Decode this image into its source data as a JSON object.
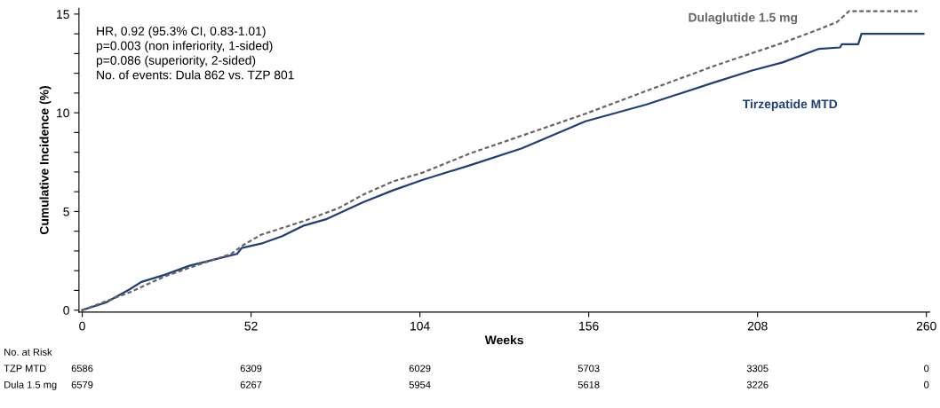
{
  "chart_data": {
    "type": "line",
    "ylabel": "Cumulative Incidence (%)",
    "xlabel": "Weeks",
    "xlim": [
      -1,
      261
    ],
    "xticks": [
      0,
      52,
      104,
      156,
      208,
      260
    ],
    "ylim": [
      -0.1,
      15.3
    ],
    "yticks": [
      0,
      {
        "value": 1,
        "label": null
      },
      {
        "value": 2,
        "label": null
      },
      {
        "value": 3,
        "label": null
      },
      {
        "value": 4,
        "label": null
      },
      5,
      {
        "value": 6,
        "label": null
      },
      {
        "value": 7,
        "label": null
      },
      {
        "value": 8,
        "label": null
      },
      {
        "value": 9,
        "label": null
      },
      10,
      {
        "value": 11,
        "label": null
      },
      {
        "value": 12,
        "label": null
      },
      {
        "value": 13,
        "label": null
      },
      {
        "value": 14,
        "label": null
      },
      15
    ],
    "grid": false,
    "legend": false,
    "series": [
      {
        "name": "Tirzepatide MTD",
        "color": "#1f3f7a",
        "line_style": "solid",
        "x": [
          0,
          7.2,
          14.6,
          18.2,
          25.6,
          33,
          40.4,
          47.7,
          49.1,
          55.1,
          61.6,
          68,
          75.4,
          86.5,
          95.7,
          104.9,
          119.6,
          135.4,
          155,
          173.6,
          195.1,
          206.3,
          215.7,
          226.9,
          233.4,
          233.9,
          239,
          240,
          259.1
        ],
        "values": [
          0,
          0.38,
          1.05,
          1.43,
          1.8,
          2.25,
          2.55,
          2.85,
          3.15,
          3.37,
          3.75,
          4.27,
          4.62,
          5.47,
          6.07,
          6.6,
          7.35,
          8.2,
          9.57,
          10.41,
          11.56,
          12.14,
          12.55,
          13.24,
          13.31,
          13.47,
          13.47,
          14.0,
          14.0
        ]
      },
      {
        "name": "Dulaglutide 1.5 mg",
        "color": "#666666",
        "line_style": "dashed",
        "x": [
          0,
          14.6,
          25.6,
          34.8,
          45.9,
          49.6,
          55.1,
          68,
          79,
          86.5,
          95.7,
          104.9,
          119.6,
          136.3,
          155,
          173.6,
          195.1,
          215.7,
          226.9,
          232.5,
          236.2,
          257.2
        ],
        "values": [
          0,
          0.9,
          1.72,
          2.25,
          2.85,
          3.3,
          3.82,
          4.5,
          5.17,
          5.85,
          6.52,
          6.97,
          7.95,
          8.89,
          9.95,
          11.1,
          12.4,
          13.54,
          14.23,
          14.6,
          15.15,
          15.15
        ]
      }
    ],
    "annotations": [
      "HR, 0.92 (95.3% CI, 0.83-1.01)\np=0.003 (non inferiority, 1-sided)\np=0.086 (superiority, 2-sided)\nNo. of events: Dula 862 vs. TZP 801",
      "No. at Risk",
      "TZP MTD",
      "6586",
      "6309",
      "6029",
      "5703",
      "3305",
      "0",
      "Dula 1.5 mg",
      "6579",
      "6267",
      "5954",
      "5618",
      "3226",
      "0"
    ]
  }
}
